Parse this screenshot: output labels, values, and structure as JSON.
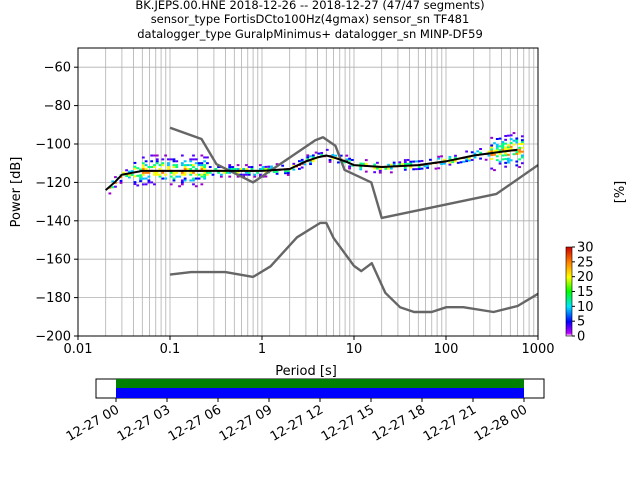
{
  "header": {
    "line1": "BK.JEPS.00.HNE   2018-12-26 -- 2018-12-27  (47/47 segments)",
    "line2": "sensor_type FortisDCto100Hz(4gmax) sensor_sn TF481",
    "line3": "datalogger_type GuralpMinimus+ datalogger_sn MINP-DF59"
  },
  "chart_data": [
    {
      "type": "heatmap",
      "title": "BK.JEPS.00.HNE   2018-12-26 -- 2018-12-27  (47/47 segments)",
      "xlabel": "Period [s]",
      "ylabel": "Power [dB]",
      "xscale": "log",
      "xlim": [
        0.01,
        1000
      ],
      "ylim": [
        -200,
        -50
      ],
      "grid": true,
      "x_ticks": [
        "0.01",
        "0.1",
        "1",
        "10",
        "100",
        "1000"
      ],
      "y_ticks": [
        "−60",
        "−80",
        "−100",
        "−120",
        "−140",
        "−160",
        "−180",
        "−200"
      ],
      "colorbar": {
        "label": "[%]",
        "range": [
          0,
          30
        ],
        "ticks": [
          "0",
          "5",
          "10",
          "15",
          "20",
          "25",
          "30"
        ]
      },
      "series": [
        {
          "role": "noise-model-high",
          "color": "#666666",
          "points": [
            [
              0.1,
              -91.5
            ],
            [
              0.22,
              -97.4
            ],
            [
              0.32,
              -110.5
            ],
            [
              0.8,
              -120
            ],
            [
              3.8,
              -98
            ],
            [
              4.6,
              -96.5
            ],
            [
              6.3,
              -101
            ],
            [
              7.9,
              -113.5
            ],
            [
              15.4,
              -120
            ],
            [
              20,
              -138.5
            ],
            [
              354,
              -126
            ],
            [
              1000,
              -111
            ]
          ]
        },
        {
          "role": "noise-model-low",
          "color": "#666666",
          "points": [
            [
              0.1,
              -168
            ],
            [
              0.17,
              -166.7
            ],
            [
              0.4,
              -166.7
            ],
            [
              0.8,
              -169.2
            ],
            [
              1.24,
              -163.7
            ],
            [
              2.4,
              -148.6
            ],
            [
              4.3,
              -141.1
            ],
            [
              5,
              -141.1
            ],
            [
              6,
              -149
            ],
            [
              10,
              -163.5
            ],
            [
              12,
              -166.2
            ],
            [
              15.6,
              -162.1
            ],
            [
              21.9,
              -177.5
            ],
            [
              31.6,
              -185
            ],
            [
              45,
              -187.5
            ],
            [
              70,
              -187.5
            ],
            [
              101,
              -185
            ],
            [
              154,
              -185
            ],
            [
              328,
              -187.5
            ],
            [
              600,
              -184.4
            ],
            [
              1000,
              -178
            ]
          ]
        },
        {
          "role": "mode",
          "color": "#000000",
          "points": [
            [
              0.02,
              -124
            ],
            [
              0.025,
              -120
            ],
            [
              0.03,
              -116
            ],
            [
              0.05,
              -114
            ],
            [
              0.1,
              -114
            ],
            [
              0.3,
              -114
            ],
            [
              1,
              -114
            ],
            [
              2,
              -113
            ],
            [
              3,
              -109
            ],
            [
              4,
              -107
            ],
            [
              5,
              -106
            ],
            [
              6,
              -107
            ],
            [
              8,
              -109
            ],
            [
              10,
              -111
            ],
            [
              20,
              -112
            ],
            [
              50,
              -111
            ],
            [
              100,
              -109
            ],
            [
              200,
              -106
            ],
            [
              400,
              -104
            ],
            [
              600,
              -103
            ]
          ]
        }
      ]
    },
    {
      "type": "table",
      "role": "data-availability",
      "x_ticks": [
        "12-27 00",
        "12-27 03",
        "12-27 06",
        "12-27 09",
        "12-27 12",
        "12-27 15",
        "12-27 18",
        "12-27 21",
        "12-28 00"
      ],
      "coverage": [
        0,
        1
      ],
      "colors": {
        "top": "#008000",
        "bottom": "#0000ff"
      }
    }
  ]
}
